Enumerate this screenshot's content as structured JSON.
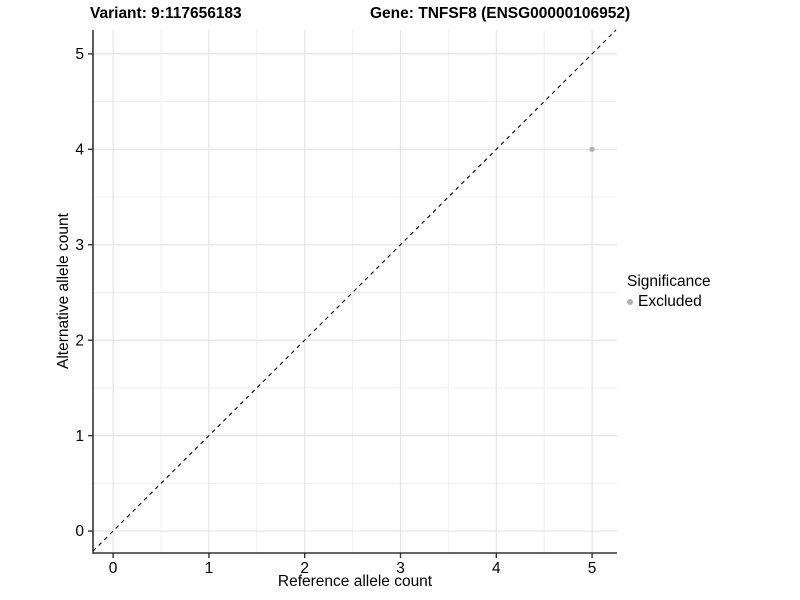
{
  "chart_data": {
    "type": "scatter",
    "title_left": "Variant: 9:117656183",
    "title_right": "Gene: TNFSF8 (ENSG00000106952)",
    "xlabel": "Reference allele count",
    "ylabel": "Alternative allele count",
    "xlim": [
      -0.21,
      5.26
    ],
    "ylim": [
      -0.23,
      5.25
    ],
    "xticks": [
      0,
      1,
      2,
      3,
      4,
      5
    ],
    "yticks": [
      0,
      1,
      2,
      3,
      4,
      5
    ],
    "minor_grid_step": 0.5,
    "grid": true,
    "points": [
      {
        "x": 5,
        "y": 4,
        "series": "Excluded",
        "color": "#b0b0b0"
      }
    ],
    "reference_line": {
      "equation": "y = x",
      "style": "dashed",
      "color": "#000000"
    },
    "legend": {
      "title": "Significance",
      "position": "right",
      "items": [
        {
          "label": "Excluded",
          "color": "#b0b0b0"
        }
      ]
    },
    "colors": {
      "background": "#ffffff",
      "grid_major": "#e4e4e4",
      "grid_minor": "#f0f0f0",
      "axis_line": "#333333",
      "tick_mark": "#333333",
      "text": "#000000",
      "point": "#b0b0b0"
    }
  }
}
